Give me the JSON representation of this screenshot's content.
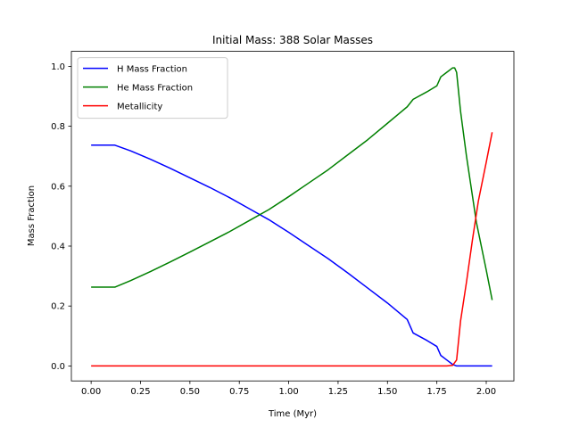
{
  "chart_data": {
    "type": "line",
    "title": "Initial Mass: 388 Solar Masses",
    "xlabel": "Time (Myr)",
    "ylabel": "Mass Fraction",
    "xlim": [
      -0.1,
      2.14
    ],
    "ylim": [
      -0.05,
      1.05
    ],
    "xticks": [
      0.0,
      0.25,
      0.5,
      0.75,
      1.0,
      1.25,
      1.5,
      1.75,
      2.0
    ],
    "xtick_labels": [
      "0.00",
      "0.25",
      "0.50",
      "0.75",
      "1.00",
      "1.25",
      "1.50",
      "1.75",
      "2.00"
    ],
    "yticks": [
      0.0,
      0.2,
      0.4,
      0.6,
      0.8,
      1.0
    ],
    "ytick_labels": [
      "0.0",
      "0.2",
      "0.4",
      "0.6",
      "0.8",
      "1.0"
    ],
    "legend_position": "top-left",
    "grid": false,
    "series": [
      {
        "name": "H Mass Fraction",
        "color": "#0000ff",
        "x": [
          0.0,
          0.12,
          0.2,
          0.3,
          0.4,
          0.5,
          0.6,
          0.7,
          0.8,
          0.9,
          1.0,
          1.1,
          1.2,
          1.3,
          1.4,
          1.5,
          1.6,
          1.63,
          1.7,
          1.75,
          1.77,
          1.8,
          1.83,
          1.85,
          1.9,
          2.03
        ],
        "y": [
          0.737,
          0.737,
          0.718,
          0.69,
          0.66,
          0.628,
          0.596,
          0.562,
          0.525,
          0.488,
          0.446,
          0.402,
          0.358,
          0.31,
          0.26,
          0.21,
          0.155,
          0.11,
          0.085,
          0.065,
          0.035,
          0.02,
          0.005,
          0.0,
          0.0,
          0.0
        ]
      },
      {
        "name": "He Mass Fraction",
        "color": "#008000",
        "x": [
          0.0,
          0.12,
          0.2,
          0.3,
          0.4,
          0.5,
          0.6,
          0.7,
          0.8,
          0.9,
          1.0,
          1.1,
          1.2,
          1.3,
          1.4,
          1.5,
          1.6,
          1.63,
          1.7,
          1.75,
          1.77,
          1.8,
          1.83,
          1.84,
          1.85,
          1.87,
          1.9,
          1.95,
          2.0,
          2.03
        ],
        "y": [
          0.263,
          0.263,
          0.285,
          0.315,
          0.347,
          0.38,
          0.414,
          0.448,
          0.485,
          0.522,
          0.565,
          0.61,
          0.655,
          0.705,
          0.755,
          0.81,
          0.865,
          0.89,
          0.915,
          0.935,
          0.965,
          0.98,
          0.995,
          0.995,
          0.98,
          0.85,
          0.7,
          0.48,
          0.32,
          0.22
        ]
      },
      {
        "name": "Metallicity",
        "color": "#ff0000",
        "x": [
          0.0,
          0.5,
          1.0,
          1.5,
          1.8,
          1.83,
          1.85,
          1.87,
          1.9,
          1.93,
          1.96,
          2.0,
          2.03
        ],
        "y": [
          0.0,
          0.0,
          0.0,
          0.0,
          0.0,
          0.002,
          0.02,
          0.15,
          0.28,
          0.42,
          0.55,
          0.68,
          0.78
        ]
      }
    ]
  }
}
